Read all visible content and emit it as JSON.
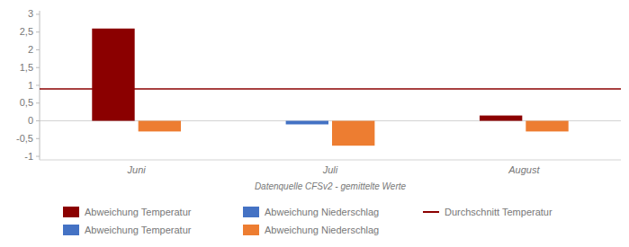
{
  "chart_data": {
    "type": "bar",
    "categories": [
      "Juni",
      "Juli",
      "August"
    ],
    "series": [
      {
        "name": "Abweichung Temperatur",
        "colors": [
          "#8B0000",
          "#4472C4",
          "#8B0000"
        ],
        "values": [
          2.6,
          -0.1,
          0.15
        ]
      },
      {
        "name": "Abweichung Niederschlag",
        "colors": [
          "#ED7D31",
          "#ED7D31",
          "#ED7D31"
        ],
        "values": [
          -0.3,
          -0.7,
          -0.3
        ]
      }
    ],
    "reference_lines": [
      {
        "name": "Durchschnitt Temperatur",
        "value": 0.9,
        "color": "#8B0000"
      }
    ],
    "legend_entries": [
      {
        "label": "Abweichung Temperatur",
        "color": "#8B0000"
      },
      {
        "label": "Abweichung Niederschlag",
        "color": "#4472C4"
      },
      {
        "label": "Durchschnitt Temperatur",
        "color": "#8B0000",
        "type": "line"
      },
      {
        "label": "Abweichung Temperatur",
        "color": "#4472C4"
      },
      {
        "label": "Abweichung Niederschlag",
        "color": "#ED7D31"
      }
    ],
    "annotations": [
      "Datenquelle CFSv2 - gemittelte Werte"
    ],
    "ylim": [
      -1.1,
      3.1
    ],
    "yticks": [
      -1,
      {
        "value": -0.5,
        "label": "-0,5"
      },
      0,
      {
        "value": 0.5,
        "label": "0,5"
      },
      1,
      {
        "value": 1.5,
        "label": "1,5"
      },
      2,
      {
        "value": 2.5,
        "label": "2,5"
      },
      3
    ],
    "grid": false,
    "legend": "bottom"
  }
}
